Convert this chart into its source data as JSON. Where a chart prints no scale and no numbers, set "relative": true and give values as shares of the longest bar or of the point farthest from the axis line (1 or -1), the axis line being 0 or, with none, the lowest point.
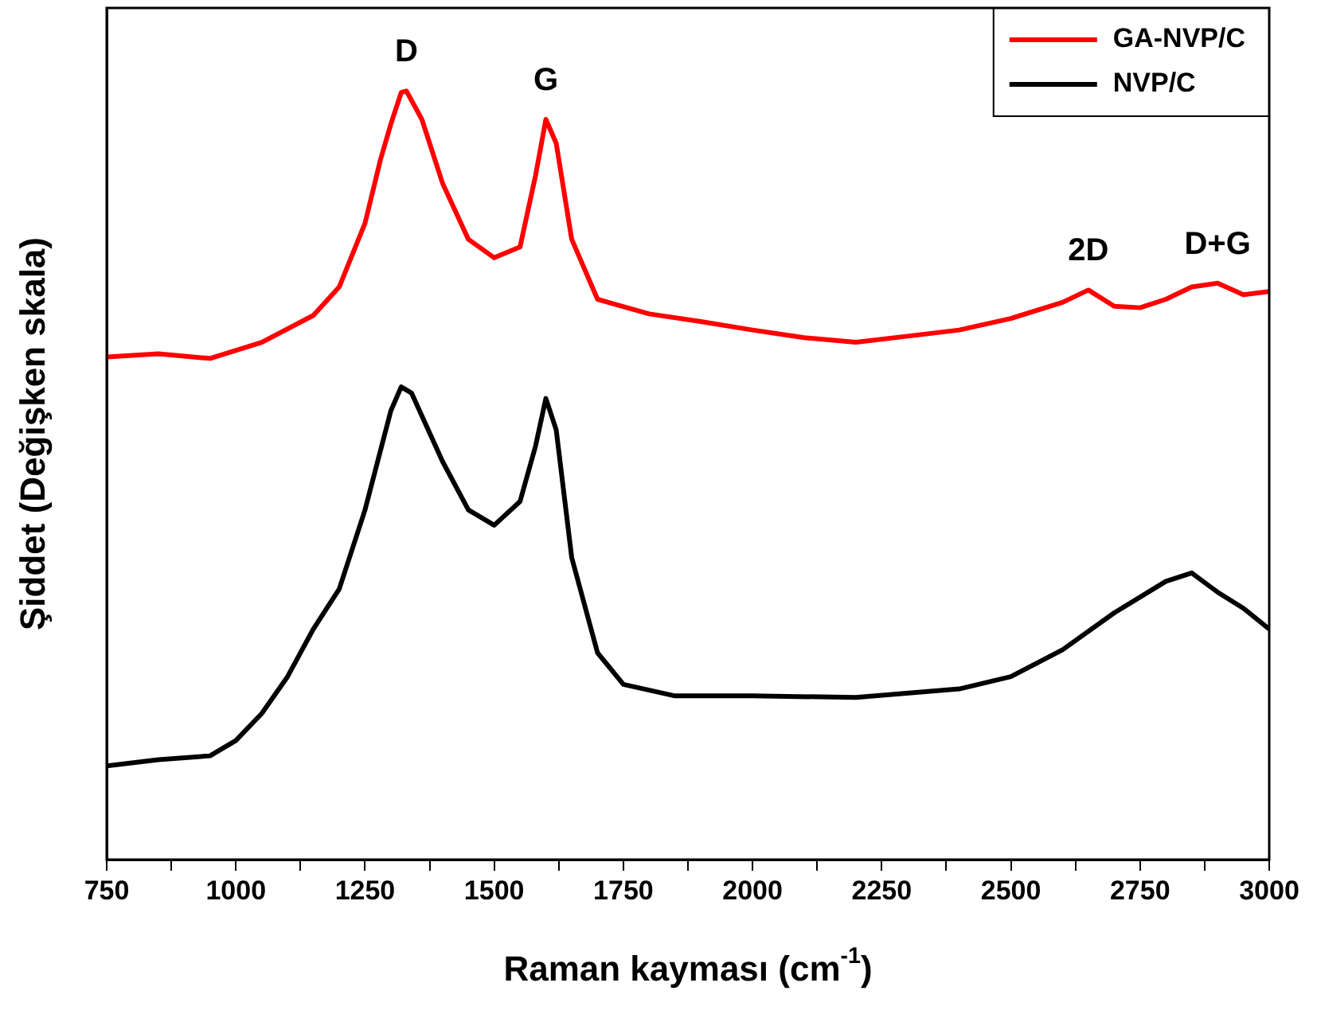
{
  "chart_data": {
    "type": "line",
    "relative": true,
    "xlabel": "Raman kayması (cm$^{-1}$)",
    "ylabel": "Şiddet (Değişken skala)",
    "xlim": [
      750,
      3000
    ],
    "xticks": [
      750,
      {
        "value": 875,
        "label": null
      },
      1000,
      {
        "value": 1125,
        "label": null
      },
      1250,
      {
        "value": 1375,
        "label": null
      },
      1500,
      {
        "value": 1625,
        "label": null
      },
      1750,
      {
        "value": 1875,
        "label": null
      },
      2000,
      {
        "value": 2125,
        "label": null
      },
      2250,
      {
        "value": 2375,
        "label": null
      },
      2500,
      {
        "value": 2625,
        "label": null
      },
      2750,
      {
        "value": 2875,
        "label": null
      },
      3000
    ],
    "legend": "top right",
    "marker": "none",
    "line_style": "solid",
    "grid": false,
    "annotations": [
      {
        "text": "D",
        "x": 1330,
        "y": 1
      },
      {
        "text": "G",
        "x": 1600,
        "y": 0.963
      },
      {
        "text": "2D",
        "x": 2650,
        "y": 0.741
      },
      {
        "text": "D+G",
        "x": 2900,
        "y": 0.75
      }
    ],
    "series": [
      {
        "name": "GA-NVP/C",
        "color": "#ff0000",
        "x": [
          750,
          850,
          950,
          1050,
          1150,
          1200,
          1250,
          1280,
          1300,
          1320,
          1330,
          1360,
          1400,
          1450,
          1500,
          1550,
          1580,
          1600,
          1620,
          1650,
          1700,
          1800,
          1900,
          2000,
          2100,
          2200,
          2300,
          2400,
          2500,
          2600,
          2650,
          2700,
          2750,
          2800,
          2850,
          2900,
          2950,
          3000
        ],
        "values": [
          0.654,
          0.658,
          0.652,
          0.673,
          0.708,
          0.745,
          0.828,
          0.911,
          0.957,
          0.998,
          1,
          0.963,
          0.88,
          0.807,
          0.783,
          0.797,
          0.89,
          0.963,
          0.932,
          0.807,
          0.729,
          0.71,
          0.7,
          0.689,
          0.679,
          0.673,
          0.681,
          0.689,
          0.704,
          0.725,
          0.741,
          0.72,
          0.718,
          0.729,
          0.745,
          0.75,
          0.735,
          0.739
        ]
      },
      {
        "name": "NVP/C",
        "color": "#000000",
        "x": [
          750,
          850,
          950,
          1000,
          1050,
          1100,
          1150,
          1200,
          1250,
          1300,
          1320,
          1340,
          1400,
          1450,
          1500,
          1550,
          1580,
          1600,
          1620,
          1650,
          1700,
          1750,
          1850,
          2000,
          2200,
          2400,
          2500,
          2600,
          2700,
          2800,
          2850,
          2900,
          2950,
          3000
        ],
        "values": [
          0.122,
          0.13,
          0.135,
          0.155,
          0.19,
          0.238,
          0.3,
          0.352,
          0.455,
          0.584,
          0.615,
          0.607,
          0.518,
          0.455,
          0.435,
          0.466,
          0.538,
          0.6,
          0.559,
          0.393,
          0.269,
          0.228,
          0.213,
          0.213,
          0.211,
          0.222,
          0.238,
          0.273,
          0.321,
          0.362,
          0.373,
          0.348,
          0.327,
          0.3
        ]
      }
    ]
  }
}
